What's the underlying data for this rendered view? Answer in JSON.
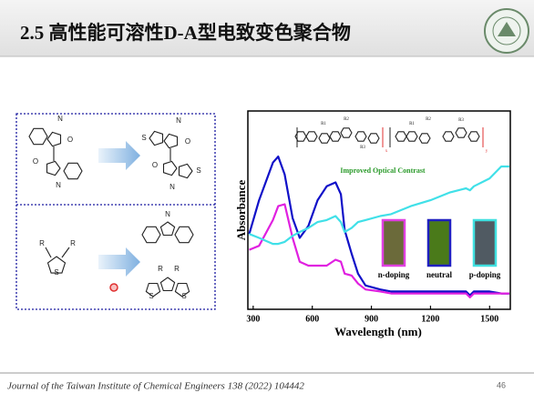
{
  "slide": {
    "title": "2.5 高性能可溶性D-A型电致变色聚合物",
    "footer": "Journal of the Taiwan Institute of Chemical Engineers 138 (2022) 104442",
    "page_number": "46"
  },
  "left_panel": {
    "top_reactant": [
      "N",
      "O",
      "O",
      "N"
    ],
    "top_product": [
      "S",
      "N",
      "O",
      "O",
      "N",
      "S"
    ],
    "bottom_reactant": [
      "R",
      "R",
      "S"
    ],
    "bottom_product_1": [
      "N"
    ],
    "bottom_product_2": [
      "R",
      "R",
      "S",
      "S"
    ]
  },
  "polymer_labels": [
    "R1",
    "R2",
    "R3",
    "R1",
    "R2",
    "R3",
    "x",
    "y"
  ],
  "chart_data": {
    "type": "line",
    "x_label": "Wavelength (nm)",
    "y_label": "Absorbance",
    "annotation": "Improved Optical Contrast",
    "insets": [
      {
        "label": "n-doping",
        "color": "#6b6a3a",
        "border": "#e040e0"
      },
      {
        "label": "neutral",
        "color": "#4a7a1a",
        "border": "#2020c0"
      },
      {
        "label": "p-doping",
        "color": "#505a62",
        "border": "#40e0e0"
      }
    ],
    "x": [
      280,
      330,
      400,
      427,
      460,
      500,
      536,
      580,
      627,
      673,
      718,
      745,
      764,
      800,
      832,
      870,
      945,
      1000,
      1100,
      1200,
      1300,
      1380,
      1400,
      1420,
      1500,
      1559,
      1600
    ],
    "series": [
      {
        "color": "#1010c8",
        "values": [
          0.38,
          0.55,
          0.74,
          0.77,
          0.68,
          0.46,
          0.36,
          0.42,
          0.55,
          0.62,
          0.64,
          0.58,
          0.4,
          0.28,
          0.18,
          0.12,
          0.1,
          0.09,
          0.09,
          0.09,
          0.09,
          0.09,
          0.07,
          0.09,
          0.09,
          0.08,
          0.08
        ]
      },
      {
        "color": "#e020e0",
        "values": [
          0.3,
          0.32,
          0.45,
          0.52,
          0.53,
          0.36,
          0.24,
          0.22,
          0.22,
          0.22,
          0.25,
          0.24,
          0.18,
          0.17,
          0.13,
          0.1,
          0.09,
          0.08,
          0.08,
          0.08,
          0.08,
          0.08,
          0.06,
          0.08,
          0.08,
          0.08,
          0.08
        ]
      },
      {
        "color": "#40e0e8",
        "values": [
          0.38,
          0.36,
          0.33,
          0.33,
          0.34,
          0.37,
          0.39,
          0.41,
          0.44,
          0.45,
          0.47,
          0.44,
          0.39,
          0.41,
          0.44,
          0.45,
          0.47,
          0.48,
          0.52,
          0.55,
          0.59,
          0.61,
          0.6,
          0.62,
          0.66,
          0.72,
          0.72
        ]
      }
    ],
    "xlim": [
      273,
      1605
    ],
    "ylim": [
      0,
      1
    ],
    "xticks": [
      300,
      600,
      900,
      1200,
      1500
    ]
  }
}
